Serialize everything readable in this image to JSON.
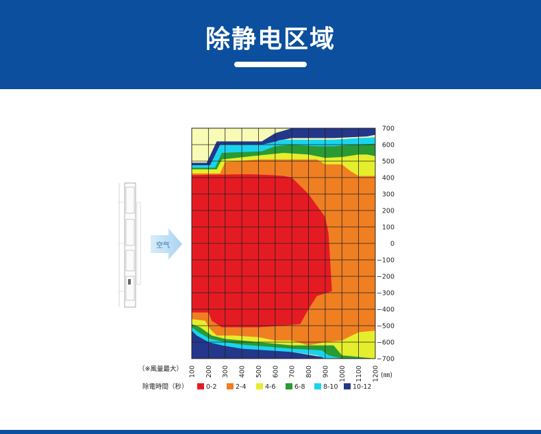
{
  "header": {
    "title": "除静电区域"
  },
  "diagram": {
    "air_label": "空气"
  },
  "chart_data": {
    "type": "heatmap",
    "title": "",
    "xlabel": "",
    "ylabel": "",
    "x_ticks": [
      100,
      200,
      300,
      400,
      500,
      600,
      700,
      800,
      900,
      1000,
      1100,
      1200
    ],
    "x_unit": "(㎜)",
    "y_ticks": [
      700,
      600,
      500,
      400,
      300,
      200,
      100,
      0,
      -100,
      -200,
      -300,
      -400,
      -500,
      -600,
      -700
    ],
    "y_tick_labels": [
      "700",
      "600",
      "500",
      "400",
      "300",
      "200",
      "100",
      "0",
      "−100",
      "−200",
      "−300",
      "−400",
      "−500",
      "−600",
      "−700"
    ],
    "xlim": [
      100,
      1200
    ],
    "ylim": [
      -700,
      700
    ],
    "grid": true,
    "note": "（※風量最大）",
    "legend_title": "除電時間（秒）",
    "legend_position": "bottom",
    "zones": [
      {
        "label": "0-2",
        "color": "#e51b23",
        "polygon": [
          [
            100,
            415
          ],
          [
            380,
            420
          ],
          [
            460,
            420
          ],
          [
            580,
            415
          ],
          [
            650,
            410
          ],
          [
            700,
            400
          ],
          [
            800,
            300
          ],
          [
            900,
            160
          ],
          [
            920,
            60
          ],
          [
            940,
            -290
          ],
          [
            850,
            -320
          ],
          [
            800,
            -400
          ],
          [
            750,
            -490
          ],
          [
            650,
            -500
          ],
          [
            500,
            -510
          ],
          [
            280,
            -510
          ],
          [
            220,
            -470
          ],
          [
            200,
            -420
          ],
          [
            100,
            -420
          ]
        ]
      },
      {
        "label": "2-4",
        "color": "#f07f22",
        "polygon": [
          [
            100,
            425
          ],
          [
            270,
            425
          ],
          [
            300,
            495
          ],
          [
            500,
            510
          ],
          [
            700,
            510
          ],
          [
            850,
            510
          ],
          [
            900,
            480
          ],
          [
            1000,
            480
          ],
          [
            1050,
            440
          ],
          [
            1100,
            410
          ],
          [
            1200,
            410
          ],
          [
            1200,
            -530
          ],
          [
            1100,
            -540
          ],
          [
            1000,
            -590
          ],
          [
            900,
            -600
          ],
          [
            800,
            -620
          ],
          [
            700,
            -590
          ],
          [
            600,
            -590
          ],
          [
            500,
            -570
          ],
          [
            350,
            -560
          ],
          [
            250,
            -560
          ],
          [
            210,
            -520
          ],
          [
            180,
            -470
          ],
          [
            100,
            -460
          ]
        ]
      },
      {
        "label": "4-6",
        "color": "#e5ee2c",
        "polygon": [
          [
            100,
            450
          ],
          [
            250,
            450
          ],
          [
            280,
            510
          ],
          [
            460,
            530
          ],
          [
            650,
            550
          ],
          [
            800,
            540
          ],
          [
            900,
            520
          ],
          [
            1000,
            525
          ],
          [
            1100,
            540
          ],
          [
            1150,
            540
          ],
          [
            1200,
            530
          ],
          [
            1200,
            -700
          ],
          [
            1100,
            -690
          ],
          [
            1000,
            -680
          ],
          [
            950,
            -620
          ],
          [
            700,
            -620
          ],
          [
            500,
            -600
          ],
          [
            300,
            -580
          ],
          [
            220,
            -560
          ],
          [
            150,
            -510
          ],
          [
            100,
            -490
          ]
        ]
      },
      {
        "label": "6-8",
        "color": "#2a9a34",
        "polygon": [
          [
            100,
            460
          ],
          [
            240,
            460
          ],
          [
            280,
            550
          ],
          [
            520,
            560
          ],
          [
            600,
            590
          ],
          [
            700,
            600
          ],
          [
            850,
            590
          ],
          [
            950,
            590
          ],
          [
            1050,
            600
          ],
          [
            1200,
            605
          ],
          [
            1200,
            -700
          ],
          [
            1000,
            -700
          ],
          [
            920,
            -680
          ],
          [
            880,
            -650
          ],
          [
            700,
            -640
          ],
          [
            400,
            -615
          ],
          [
            300,
            -600
          ],
          [
            210,
            -580
          ],
          [
            140,
            -540
          ],
          [
            100,
            -510
          ]
        ]
      },
      {
        "label": "8-10",
        "color": "#19d4f0",
        "polygon": [
          [
            100,
            475
          ],
          [
            210,
            475
          ],
          [
            270,
            600
          ],
          [
            520,
            600
          ],
          [
            650,
            630
          ],
          [
            950,
            630
          ],
          [
            1100,
            640
          ],
          [
            1200,
            645
          ],
          [
            1200,
            -700
          ],
          [
            900,
            -700
          ],
          [
            850,
            -680
          ],
          [
            700,
            -660
          ],
          [
            400,
            -640
          ],
          [
            280,
            -620
          ],
          [
            200,
            -600
          ],
          [
            130,
            -560
          ],
          [
            100,
            -530
          ]
        ]
      },
      {
        "label": "10-12",
        "color": "#24378b",
        "polygon": [
          [
            100,
            490
          ],
          [
            190,
            490
          ],
          [
            250,
            620
          ],
          [
            520,
            620
          ],
          [
            600,
            670
          ],
          [
            700,
            700
          ],
          [
            1200,
            700
          ],
          [
            1200,
            660
          ],
          [
            1150,
            650
          ],
          [
            1050,
            645
          ],
          [
            950,
            640
          ],
          [
            700,
            640
          ],
          [
            620,
            625
          ],
          [
            560,
            595
          ],
          [
            290,
            595
          ],
          [
            230,
            470
          ],
          [
            100,
            470
          ],
          [
            100,
            -460
          ],
          [
            120,
            -470
          ],
          [
            150,
            -510
          ],
          [
            230,
            -590
          ],
          [
            300,
            -610
          ],
          [
            400,
            -630
          ],
          [
            700,
            -660
          ],
          [
            880,
            -690
          ],
          [
            900,
            -700
          ],
          [
            100,
            -700
          ]
        ]
      }
    ],
    "background_color": "#f7fbb4"
  }
}
